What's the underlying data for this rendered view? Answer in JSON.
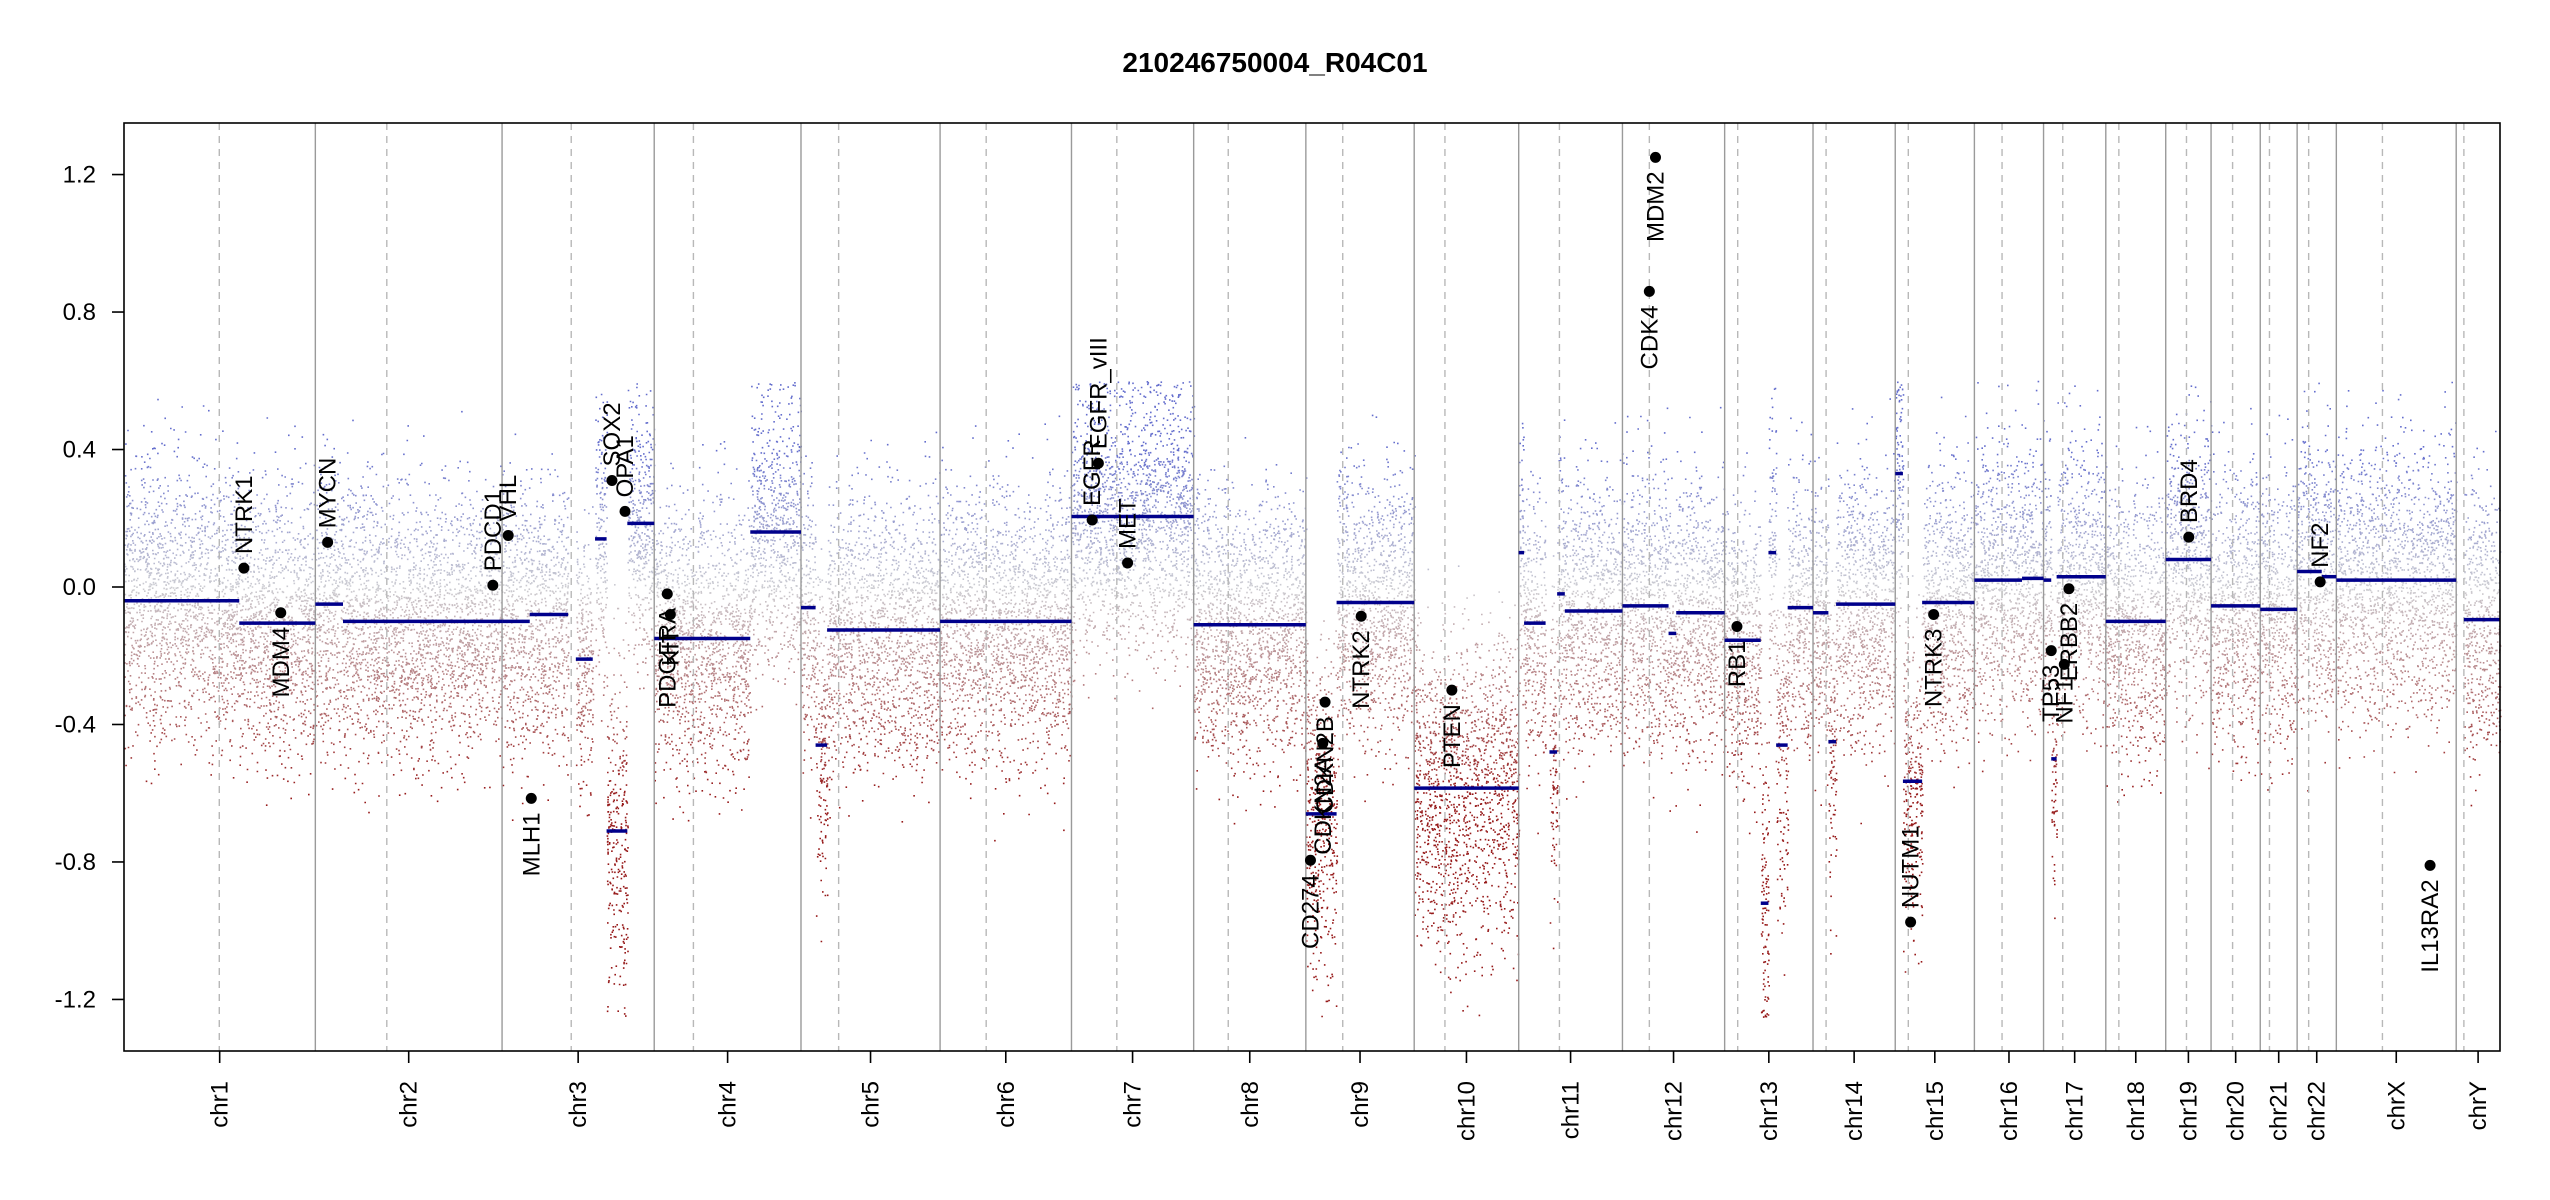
{
  "chart_data": {
    "type": "scatter",
    "title": "210246750004_R04C01",
    "xlabel": "",
    "ylabel": "",
    "ylim": [
      -1.35,
      1.35
    ],
    "yticks": [
      {
        "value": 1.2,
        "label": "1.2"
      },
      {
        "value": 0.8,
        "label": "0.8"
      },
      {
        "value": 0.4,
        "label": "0.4"
      },
      {
        "value": 0.0,
        "label": "0.0"
      },
      {
        "value": -0.4,
        "label": "-0.4"
      },
      {
        "value": -0.8,
        "label": "-0.8"
      },
      {
        "value": -1.2,
        "label": "-1.2"
      }
    ],
    "chromosomes": [
      {
        "name": "chr1",
        "start": 0,
        "end": 249,
        "centromere": 124
      },
      {
        "name": "chr2",
        "start": 249,
        "end": 492,
        "centromere": 342
      },
      {
        "name": "chr3",
        "start": 492,
        "end": 690,
        "centromere": 582
      },
      {
        "name": "chr4",
        "start": 690,
        "end": 881,
        "centromere": 741
      },
      {
        "name": "chr5",
        "start": 881,
        "end": 1062,
        "centromere": 930
      },
      {
        "name": "chr6",
        "start": 1062,
        "end": 1233,
        "centromere": 1122
      },
      {
        "name": "chr7",
        "start": 1233,
        "end": 1392,
        "centromere": 1292
      },
      {
        "name": "chr8",
        "start": 1392,
        "end": 1538,
        "centromere": 1437
      },
      {
        "name": "chr9",
        "start": 1538,
        "end": 1679,
        "centromere": 1586
      },
      {
        "name": "chr10",
        "start": 1679,
        "end": 1815,
        "centromere": 1719
      },
      {
        "name": "chr11",
        "start": 1815,
        "end": 1950,
        "centromere": 1868
      },
      {
        "name": "chr12",
        "start": 1950,
        "end": 2083,
        "centromere": 1985
      },
      {
        "name": "chr13",
        "start": 2083,
        "end": 2198,
        "centromere": 2100
      },
      {
        "name": "chr14",
        "start": 2198,
        "end": 2305,
        "centromere": 2215
      },
      {
        "name": "chr15",
        "start": 2305,
        "end": 2408,
        "centromere": 2322
      },
      {
        "name": "chr16",
        "start": 2408,
        "end": 2498,
        "centromere": 2444
      },
      {
        "name": "chr17",
        "start": 2498,
        "end": 2579,
        "centromere": 2523
      },
      {
        "name": "chr18",
        "start": 2579,
        "end": 2657,
        "centromere": 2596
      },
      {
        "name": "chr19",
        "start": 2657,
        "end": 2716,
        "centromere": 2684
      },
      {
        "name": "chr20",
        "start": 2716,
        "end": 2780,
        "centromere": 2744
      },
      {
        "name": "chr21",
        "start": 2780,
        "end": 2828,
        "centromere": 2792
      },
      {
        "name": "chr22",
        "start": 2828,
        "end": 2879,
        "centromere": 2843
      },
      {
        "name": "chrX",
        "start": 2879,
        "end": 3035,
        "centromere": 2939
      },
      {
        "name": "chrY",
        "start": 3035,
        "end": 3092,
        "centromere": 3045
      }
    ],
    "segments": [
      {
        "x0": 0,
        "x1": 150,
        "y": -0.04
      },
      {
        "x0": 150,
        "x1": 249,
        "y": -0.105
      },
      {
        "x0": 249,
        "x1": 285,
        "y": -0.05
      },
      {
        "x0": 285,
        "x1": 492,
        "y": -0.1
      },
      {
        "x0": 492,
        "x1": 528,
        "y": -0.1
      },
      {
        "x0": 528,
        "x1": 578,
        "y": -0.08
      },
      {
        "x0": 588,
        "x1": 610,
        "y": -0.21
      },
      {
        "x0": 613,
        "x1": 628,
        "y": 0.14
      },
      {
        "x0": 628,
        "x1": 655,
        "y": -0.71
      },
      {
        "x0": 655,
        "x1": 690,
        "y": 0.185
      },
      {
        "x0": 690,
        "x1": 815,
        "y": -0.15
      },
      {
        "x0": 815,
        "x1": 881,
        "y": 0.16
      },
      {
        "x0": 881,
        "x1": 900,
        "y": -0.06
      },
      {
        "x0": 900,
        "x1": 915,
        "y": -0.46
      },
      {
        "x0": 915,
        "x1": 1062,
        "y": -0.125
      },
      {
        "x0": 1062,
        "x1": 1233,
        "y": -0.1
      },
      {
        "x0": 1233,
        "x1": 1392,
        "y": 0.205
      },
      {
        "x0": 1392,
        "x1": 1538,
        "y": -0.11
      },
      {
        "x0": 1538,
        "x1": 1578,
        "y": -0.66
      },
      {
        "x0": 1578,
        "x1": 1679,
        "y": -0.045
      },
      {
        "x0": 1679,
        "x1": 1815,
        "y": -0.585
      },
      {
        "x0": 1815,
        "x1": 1822,
        "y": 0.1
      },
      {
        "x0": 1822,
        "x1": 1850,
        "y": -0.105
      },
      {
        "x0": 1855,
        "x1": 1865,
        "y": -0.48
      },
      {
        "x0": 1865,
        "x1": 1875,
        "y": -0.02
      },
      {
        "x0": 1875,
        "x1": 1950,
        "y": -0.07
      },
      {
        "x0": 1950,
        "x1": 2010,
        "y": -0.055
      },
      {
        "x0": 2010,
        "x1": 2020,
        "y": -0.135
      },
      {
        "x0": 2020,
        "x1": 2083,
        "y": -0.075
      },
      {
        "x0": 2083,
        "x1": 2130,
        "y": -0.155
      },
      {
        "x0": 2130,
        "x1": 2140,
        "y": -0.92
      },
      {
        "x0": 2140,
        "x1": 2150,
        "y": 0.1
      },
      {
        "x0": 2150,
        "x1": 2165,
        "y": -0.46
      },
      {
        "x0": 2165,
        "x1": 2198,
        "y": -0.06
      },
      {
        "x0": 2198,
        "x1": 2218,
        "y": -0.075
      },
      {
        "x0": 2218,
        "x1": 2228,
        "y": -0.45
      },
      {
        "x0": 2228,
        "x1": 2305,
        "y": -0.05
      },
      {
        "x0": 2305,
        "x1": 2315,
        "y": 0.33
      },
      {
        "x0": 2315,
        "x1": 2340,
        "y": -0.565
      },
      {
        "x0": 2340,
        "x1": 2408,
        "y": -0.045
      },
      {
        "x0": 2408,
        "x1": 2470,
        "y": 0.02
      },
      {
        "x0": 2470,
        "x1": 2498,
        "y": 0.025
      },
      {
        "x0": 2498,
        "x1": 2508,
        "y": 0.02
      },
      {
        "x0": 2508,
        "x1": 2515,
        "y": -0.5
      },
      {
        "x0": 2515,
        "x1": 2579,
        "y": 0.03
      },
      {
        "x0": 2579,
        "x1": 2657,
        "y": -0.1
      },
      {
        "x0": 2657,
        "x1": 2716,
        "y": 0.08
      },
      {
        "x0": 2716,
        "x1": 2780,
        "y": -0.055
      },
      {
        "x0": 2780,
        "x1": 2828,
        "y": -0.065
      },
      {
        "x0": 2828,
        "x1": 2860,
        "y": 0.045
      },
      {
        "x0": 2860,
        "x1": 2879,
        "y": 0.03
      },
      {
        "x0": 2879,
        "x1": 3035,
        "y": 0.02
      },
      {
        "x0": 3045,
        "x1": 3092,
        "y": -0.095
      }
    ],
    "genes": [
      {
        "name": "NTRK1",
        "x": 156,
        "y": 0.055,
        "side": "up"
      },
      {
        "name": "MDM4",
        "x": 204,
        "y": -0.075,
        "side": "down"
      },
      {
        "name": "MYCN",
        "x": 265,
        "y": 0.13,
        "side": "up"
      },
      {
        "name": "PDCD1",
        "x": 480,
        "y": 0.005,
        "side": "up"
      },
      {
        "name": "VHL",
        "x": 500,
        "y": 0.15,
        "side": "up"
      },
      {
        "name": "MLH1",
        "x": 530,
        "y": -0.615,
        "side": "down"
      },
      {
        "name": "SOX2",
        "x": 635,
        "y": 0.31,
        "side": "up"
      },
      {
        "name": "OPA1",
        "x": 652,
        "y": 0.22,
        "side": "up"
      },
      {
        "name": "PDGFRA",
        "x": 707,
        "y": -0.02,
        "side": "down"
      },
      {
        "name": "KIT",
        "x": 711,
        "y": -0.08,
        "side": "down"
      },
      {
        "name": "EGFR",
        "x": 1260,
        "y": 0.195,
        "side": "up"
      },
      {
        "name": "EGFR_vIII",
        "x": 1268,
        "y": 0.36,
        "side": "up"
      },
      {
        "name": "MET",
        "x": 1306,
        "y": 0.07,
        "side": "up"
      },
      {
        "name": "CD274",
        "x": 1544,
        "y": -0.795,
        "side": "down"
      },
      {
        "name": "CDKN2A",
        "x": 1560,
        "y": -0.455,
        "side": "down"
      },
      {
        "name": "CDKN2B",
        "x": 1563,
        "y": -0.335,
        "side": "down"
      },
      {
        "name": "NTRK2",
        "x": 1610,
        "y": -0.085,
        "side": "down"
      },
      {
        "name": "PTEN",
        "x": 1728,
        "y": -0.3,
        "side": "down"
      },
      {
        "name": "CDK4",
        "x": 1985,
        "y": 0.86,
        "side": "down"
      },
      {
        "name": "MDM2",
        "x": 1993,
        "y": 1.25,
        "side": "down"
      },
      {
        "name": "RB1",
        "x": 2099,
        "y": -0.115,
        "side": "down"
      },
      {
        "name": "NUTM1",
        "x": 2325,
        "y": -0.975,
        "side": "up"
      },
      {
        "name": "NTRK3",
        "x": 2355,
        "y": -0.08,
        "side": "down"
      },
      {
        "name": "TP53",
        "x": 2508,
        "y": -0.185,
        "side": "down"
      },
      {
        "name": "NF1",
        "x": 2525,
        "y": -0.225,
        "side": "down"
      },
      {
        "name": "ERBB2",
        "x": 2531,
        "y": -0.005,
        "side": "down"
      },
      {
        "name": "BRD4",
        "x": 2687,
        "y": 0.145,
        "side": "up"
      },
      {
        "name": "NF2",
        "x": 2858,
        "y": 0.015,
        "side": "up"
      },
      {
        "name": "IL13RA2",
        "x": 3001,
        "y": -0.81,
        "side": "down"
      }
    ]
  }
}
